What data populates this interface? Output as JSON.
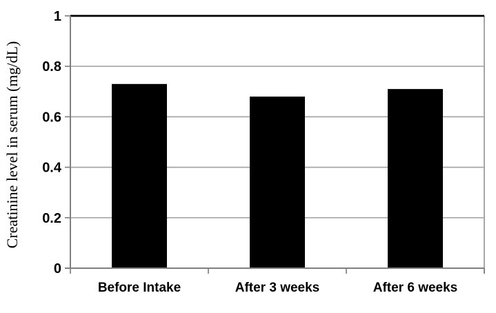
{
  "chart_data": {
    "type": "bar",
    "title": "",
    "xlabel": "",
    "ylabel": "Creatinine level in serum (mg/dL)",
    "categories": [
      "Before Intake",
      "After 3 weeks",
      "After 6 weeks"
    ],
    "values": [
      0.73,
      0.68,
      0.71
    ],
    "ylim": [
      0,
      1
    ],
    "yticks": [
      0,
      0.2,
      0.4,
      0.6,
      0.8,
      1
    ],
    "ytick_labels": [
      "0",
      "0.2",
      "0.4",
      "0.6",
      "0.8",
      "1"
    ],
    "grid": true,
    "legend": false,
    "colors": {
      "bar": "#000000",
      "gridline": "#a6a6a6",
      "axis": "#808080",
      "top_line": "#000000",
      "text": "#000000",
      "background": "#ffffff"
    }
  }
}
